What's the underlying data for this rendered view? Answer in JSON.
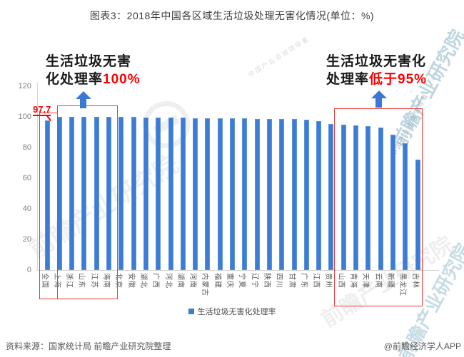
{
  "title": "图表3：2018年中国各区域生活垃圾处理无害化情况(单位：%)",
  "chart_data": {
    "type": "bar",
    "title": "图表3：2018年中国各区域生活垃圾处理无害化情况(单位：%)",
    "unit": "%",
    "ylim": [
      0,
      120
    ],
    "yticks": [
      0,
      20,
      40,
      60,
      80,
      100,
      120
    ],
    "grid": false,
    "legend_position": "bottom",
    "series_name": "生活垃圾无害化处理率",
    "bar_color": "#3b7cd5",
    "categories": [
      "全国",
      "上海",
      "浙江",
      "山东",
      "江苏",
      "海南",
      "北京",
      "安徽",
      "湖北",
      "广西",
      "河北",
      "湖南",
      "河南",
      "内蒙古",
      "福建",
      "重庆",
      "宁夏",
      "辽宁",
      "陕西",
      "四川",
      "甘肃",
      "广东",
      "江西",
      "贵州",
      "山西",
      "青海",
      "天津",
      "云南",
      "新疆",
      "黑龙江",
      "吉林"
    ],
    "values": [
      97.7,
      100,
      100,
      100,
      100,
      100,
      99.9,
      99.8,
      99.7,
      99.6,
      99.5,
      99.4,
      99.3,
      99.2,
      99.1,
      99.0,
      98.9,
      98.8,
      98.7,
      98.6,
      98.4,
      98.0,
      97.3,
      95.2,
      94.8,
      94.5,
      94.0,
      92.8,
      88.5,
      82.8,
      72.0
    ]
  },
  "annotations": {
    "national_value": "97.7",
    "left_note_line1": "生活垃圾无害",
    "left_note_line2_black": "化处理率",
    "left_note_line2_red": "100%",
    "right_note_line1": "生活垃圾无害化",
    "right_note_line2_black": "处理率",
    "right_note_line2_red": "低于95%",
    "box_color": "#ec3a3a",
    "arrow_color": "#3b78d4",
    "value_color": "#fe0000"
  },
  "legend": {
    "label": "生活垃圾无害化处理率",
    "marker_color": "#3b7cd5"
  },
  "footer": {
    "source": "资料来源：国家统计局 前瞻产业研究院整理",
    "credit": "@前瞻经济学人APP"
  },
  "watermark": {
    "brand": "前瞻产业研究院",
    "tagline": "中国产业咨询领导者"
  }
}
